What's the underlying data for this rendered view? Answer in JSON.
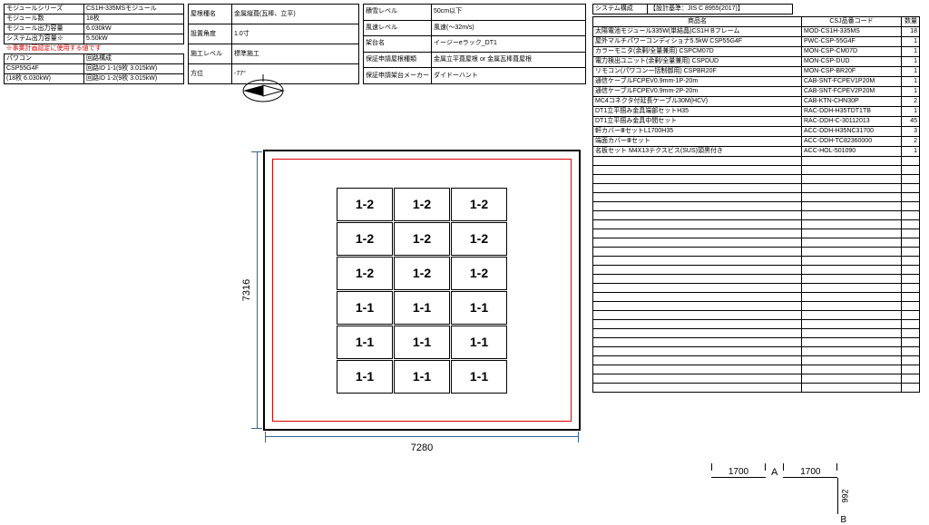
{
  "t1": {
    "rows": [
      [
        "モジュールシリーズ",
        "CS1H-335MSモジュール"
      ],
      [
        "モジュール数",
        "18枚"
      ],
      [
        "モジュール出力容量",
        "6.030kW"
      ],
      [
        "システム出力容量※",
        "5.50kW"
      ]
    ],
    "note": "※事業計画認定に使用する値です",
    "sub_header": [
      "パワコン",
      "回路構成"
    ],
    "sub": [
      [
        "CSP55G4F",
        "回路ID 1-1(9枚 3.015kW)"
      ],
      [
        "(18枚 6.030kW)",
        "回路ID 1-2(9枚 3.015kW)"
      ]
    ]
  },
  "t2": {
    "rows": [
      [
        "屋根種名",
        "金属縦葺(瓦棒、立平)"
      ],
      [
        "設置角度",
        "1.0寸"
      ],
      [
        "施工レベル",
        "標準施工"
      ],
      [
        "方位",
        "-77°"
      ]
    ]
  },
  "t3": {
    "rows": [
      [
        "積雪レベル",
        "50cm以下"
      ],
      [
        "風速レベル",
        "風速(～32m/s)"
      ],
      [
        "架台名",
        "イージーeラック_DT1"
      ],
      [
        "保証申請屋根種類",
        "金属立平葺屋根 or 金属瓦棒葺屋根"
      ],
      [
        "保証申請架台メーカー",
        "ダイドーハント"
      ]
    ]
  },
  "sys_header": [
    "システム構成",
    "【設計基準：JIS C 8955(2017)】"
  ],
  "bom": {
    "headers": [
      "商品名",
      "CSJ品番コード",
      "数量"
    ],
    "rows": [
      [
        "太陽電池モジュール335W(単結晶)CS1H Bフレーム",
        "MOD-CS1H-335MS",
        "18"
      ],
      [
        "屋外マルチパワーコンディショナ5.5kW CSP55G4F",
        "PWC-CSP-55G4F",
        "1"
      ],
      [
        "カラーモニタ(余剰/全量兼用) CSPCM07D",
        "MON-CSP-CM07D",
        "1"
      ],
      [
        "電力検出ユニット(余剰/全量兼用) CSPDUD",
        "MON-CSP-DUD",
        "1"
      ],
      [
        "リモコン(パワコン一括制御用) CSPBR20F",
        "MON-CSP-BR20F",
        "1"
      ],
      [
        "通信ケーブルFCPEV0.9mm-1P-20m",
        "CAB-SNT-FCPEV1P20M",
        "1"
      ],
      [
        "通信ケーブルFCPEV0.9mm-2P-20m",
        "CAB-SNT-FCPEV2P20M",
        "1"
      ],
      [
        "MC4コネクタ付延長ケーブル30M(HCV)",
        "CAB-KTN-CHN30P",
        "2"
      ],
      [
        "DT1立平掴み金具端部セットH35",
        "RAC-DDH-H35TDT1TB",
        "1"
      ],
      [
        "DT1立平掴み金具中間セット",
        "RAC-DDH-C-30112013",
        "45"
      ],
      [
        "軒カバーⅢセットL1700H35",
        "ACC-DDH-H35NC31700",
        "3"
      ],
      [
        "端面カバーⅢセット",
        "ACC-DDH-TC82360000",
        "2"
      ],
      [
        "名板セット M4X13テクスビス(SUS)頭黒付き",
        "ACC-HOL-501090",
        "1"
      ]
    ],
    "empty_rows": 26
  },
  "layout": {
    "width_mm": "7280",
    "height_mm": "7316",
    "panel_labels": [
      "1-2",
      "1-2",
      "1-2",
      "1-2",
      "1-2",
      "1-2",
      "1-2",
      "1-2",
      "1-2",
      "1-1",
      "1-1",
      "1-1",
      "1-1",
      "1-1",
      "1-1",
      "1-1",
      "1-1",
      "1-1"
    ]
  },
  "bottom": {
    "seg1": "1700",
    "labelA": "A",
    "seg2": "1700",
    "v": "992",
    "labelB": "B"
  },
  "colors": {
    "border": "#000000",
    "red": "#d00000",
    "dim": "#336699"
  }
}
